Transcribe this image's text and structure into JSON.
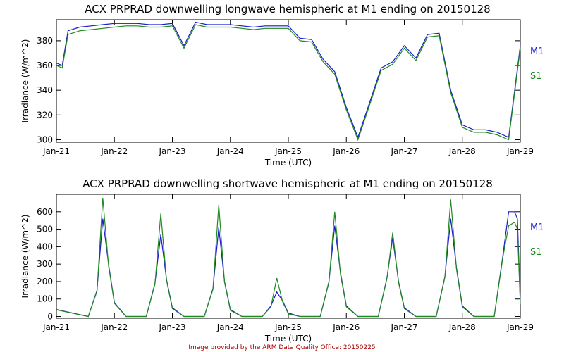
{
  "colors": {
    "M1": "#1a1acc",
    "S1": "#1f8a1f",
    "credit": "#aa0000"
  },
  "credit": "Image provided by the ARM Data Quality Office: 20150225",
  "chart_data": [
    {
      "type": "line",
      "title": "ACX PRPRAD downwelling longwave hemispheric at M1 ending on 20150128",
      "xlabel": "Time (UTC)",
      "ylabel": "Irradiance (W/m^2)",
      "xlim": [
        0,
        8
      ],
      "ylim": [
        298,
        397
      ],
      "x_ticks": [
        "Jan-21",
        "Jan-22",
        "Jan-23",
        "Jan-24",
        "Jan-25",
        "Jan-26",
        "Jan-27",
        "Jan-28",
        "Jan-29"
      ],
      "y_ticks": [
        300,
        320,
        340,
        360,
        380
      ],
      "legend": "right",
      "series": [
        {
          "name": "M1",
          "x": [
            0,
            0.1,
            0.2,
            0.4,
            0.6,
            0.8,
            1.0,
            1.2,
            1.4,
            1.6,
            1.8,
            2.0,
            2.2,
            2.4,
            2.6,
            2.8,
            3.0,
            3.2,
            3.4,
            3.6,
            3.8,
            4.0,
            4.2,
            4.4,
            4.6,
            4.8,
            5.0,
            5.2,
            5.4,
            5.6,
            5.8,
            6.0,
            6.2,
            6.4,
            6.6,
            6.8,
            7.0,
            7.2,
            7.4,
            7.6,
            7.8,
            8.0
          ],
          "y": [
            362,
            360,
            388,
            391,
            392,
            393,
            394,
            394,
            394,
            393,
            393,
            394,
            376,
            395,
            393,
            393,
            393,
            392,
            391,
            392,
            392,
            392,
            382,
            381,
            365,
            355,
            326,
            302,
            330,
            358,
            363,
            376,
            366,
            385,
            386,
            340,
            312,
            308,
            308,
            306,
            302,
            376
          ]
        },
        {
          "name": "S1",
          "x": [
            0,
            0.1,
            0.2,
            0.4,
            0.6,
            0.8,
            1.0,
            1.2,
            1.4,
            1.6,
            1.8,
            2.0,
            2.2,
            2.4,
            2.6,
            2.8,
            3.0,
            3.2,
            3.4,
            3.6,
            3.8,
            4.0,
            4.2,
            4.4,
            4.6,
            4.8,
            5.0,
            5.2,
            5.4,
            5.6,
            5.8,
            6.0,
            6.2,
            6.4,
            6.6,
            6.8,
            7.0,
            7.2,
            7.4,
            7.6,
            7.8,
            8.0
          ],
          "y": [
            360,
            358,
            385,
            388,
            389,
            390,
            391,
            392,
            392,
            391,
            391,
            392,
            374,
            393,
            391,
            391,
            391,
            390,
            389,
            390,
            390,
            390,
            380,
            379,
            363,
            353,
            324,
            300,
            328,
            356,
            361,
            374,
            364,
            383,
            384,
            338,
            310,
            306,
            306,
            304,
            300,
            374
          ]
        }
      ]
    },
    {
      "type": "line",
      "title": "ACX PRPRAD downwelling shortwave hemispheric at M1 ending on 20150128",
      "xlabel": "Time (UTC)",
      "ylabel": "Irradiance (W/m^2)",
      "xlim": [
        0,
        8
      ],
      "ylim": [
        -10,
        700
      ],
      "x_ticks": [
        "Jan-21",
        "Jan-22",
        "Jan-23",
        "Jan-24",
        "Jan-25",
        "Jan-26",
        "Jan-27",
        "Jan-28",
        "Jan-29"
      ],
      "y_ticks": [
        0,
        100,
        200,
        300,
        400,
        500,
        600
      ],
      "legend": "right",
      "series": [
        {
          "name": "M1",
          "x": [
            0,
            0.55,
            0.7,
            0.8,
            0.9,
            1.0,
            1.2,
            1.55,
            1.7,
            1.8,
            1.9,
            2.0,
            2.2,
            2.55,
            2.7,
            2.8,
            2.9,
            3.0,
            3.2,
            3.55,
            3.7,
            3.8,
            3.9,
            4.0,
            4.2,
            4.55,
            4.7,
            4.8,
            4.9,
            5.0,
            5.2,
            5.55,
            5.7,
            5.8,
            5.9,
            6.0,
            6.2,
            6.55,
            6.7,
            6.8,
            6.9,
            7.0,
            7.2,
            7.55,
            7.7,
            7.8,
            7.9,
            7.95,
            8.0
          ],
          "y": [
            40,
            0,
            150,
            560,
            300,
            80,
            0,
            0,
            190,
            470,
            210,
            50,
            0,
            0,
            160,
            510,
            200,
            40,
            0,
            0,
            60,
            140,
            90,
            20,
            0,
            0,
            200,
            520,
            250,
            60,
            0,
            0,
            220,
            450,
            200,
            50,
            0,
            0,
            230,
            560,
            280,
            60,
            0,
            0,
            350,
            600,
            600,
            560,
            80
          ]
        },
        {
          "name": "S1",
          "x": [
            0,
            0.55,
            0.7,
            0.8,
            0.9,
            1.0,
            1.2,
            1.55,
            1.7,
            1.8,
            1.9,
            2.0,
            2.2,
            2.55,
            2.7,
            2.8,
            2.9,
            3.0,
            3.2,
            3.55,
            3.7,
            3.8,
            3.9,
            4.0,
            4.2,
            4.55,
            4.7,
            4.8,
            4.9,
            5.0,
            5.2,
            5.55,
            5.7,
            5.8,
            5.9,
            6.0,
            6.2,
            6.55,
            6.7,
            6.8,
            6.9,
            7.0,
            7.2,
            7.55,
            7.7,
            7.8,
            7.9,
            7.95,
            8.0
          ],
          "y": [
            38,
            0,
            145,
            680,
            290,
            75,
            0,
            0,
            185,
            590,
            205,
            45,
            0,
            0,
            155,
            640,
            195,
            35,
            0,
            0,
            55,
            220,
            85,
            15,
            0,
            0,
            195,
            600,
            240,
            55,
            0,
            0,
            215,
            480,
            195,
            45,
            0,
            0,
            225,
            670,
            270,
            55,
            0,
            0,
            340,
            520,
            540,
            500,
            70
          ]
        }
      ]
    }
  ]
}
